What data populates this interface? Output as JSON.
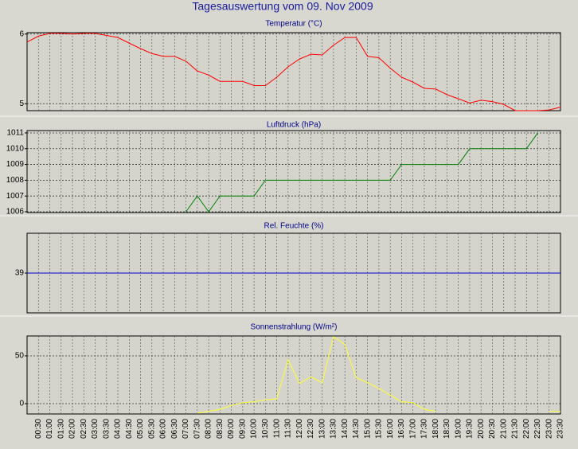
{
  "title": "Tagesauswertung vom 09. Nov 2009",
  "chart_data": [
    {
      "type": "line",
      "title": "Temperatur (°C)",
      "color": "#ff0000",
      "ylim": [
        4.9,
        6.02
      ],
      "yticks": [
        5,
        6
      ],
      "grid": true,
      "values": [
        5.885,
        5.97,
        6.01,
        6.01,
        6.0,
        6.01,
        6.01,
        5.98,
        5.95,
        5.87,
        5.79,
        5.72,
        5.68,
        5.68,
        5.61,
        5.47,
        5.41,
        5.32,
        5.32,
        5.32,
        5.26,
        5.26,
        5.38,
        5.53,
        5.64,
        5.71,
        5.7,
        5.84,
        5.95,
        5.95,
        5.68,
        5.66,
        5.51,
        5.38,
        5.31,
        5.22,
        5.21,
        5.13,
        5.07,
        5.01,
        5.05,
        5.03,
        4.99,
        4.9,
        4.9,
        4.9,
        4.91,
        4.95
      ]
    },
    {
      "type": "line",
      "title": "Luftdruck (hPa)",
      "color": "#008000",
      "ylim": [
        1005.95,
        1011.15
      ],
      "yticks": [
        1006,
        1007,
        1008,
        1009,
        1010,
        1011
      ],
      "grid": true,
      "values": [
        null,
        null,
        null,
        null,
        null,
        null,
        null,
        null,
        null,
        null,
        null,
        null,
        null,
        null,
        1006,
        1007,
        1006,
        1007,
        1007,
        1007,
        1007,
        1008,
        1008,
        1008,
        1008,
        1008,
        1008,
        1008,
        1008,
        1008,
        1008,
        1008,
        1008,
        1009,
        1009,
        1009,
        1009,
        1009,
        1009,
        1010,
        1010,
        1010,
        1010,
        1010,
        1010,
        1011,
        null,
        null
      ]
    },
    {
      "type": "line",
      "title": "Rel. Feuchte (%)",
      "color": "#0000cc",
      "ylim": [
        38,
        40
      ],
      "yticks": [
        39
      ],
      "grid": true,
      "values": [
        39,
        39,
        39,
        39,
        39,
        39,
        39,
        39,
        39,
        39,
        39,
        39,
        39,
        39,
        39,
        39,
        39,
        39,
        39,
        39,
        39,
        39,
        39,
        39,
        39,
        39,
        39,
        39,
        39,
        39,
        39,
        39,
        39,
        39,
        39,
        39,
        39,
        39,
        39,
        39,
        39,
        39,
        39,
        39,
        39,
        39,
        39,
        39
      ]
    },
    {
      "type": "line",
      "title": "Sonnenstrahlung (W/m²)",
      "color": "#ffff33",
      "ylim": [
        -10.8,
        70.8
      ],
      "yticks": [
        0,
        50
      ],
      "grid": true,
      "values": [
        null,
        null,
        null,
        null,
        null,
        null,
        null,
        null,
        null,
        null,
        null,
        null,
        null,
        null,
        null,
        -10,
        -8,
        -6,
        -2,
        1,
        2,
        4,
        5,
        46,
        21,
        28,
        22,
        70,
        62,
        27,
        22,
        16,
        9,
        2,
        1,
        -6,
        -8,
        null,
        null,
        null,
        null,
        null,
        null,
        null,
        null,
        null,
        -8,
        -8
      ],
      "categories": [
        null,
        "00:30",
        "01:00",
        "01:30",
        "02:00",
        "02:30",
        "03:00",
        "03:30",
        "04:00",
        "04:30",
        "05:00",
        "05:30",
        "06:00",
        "06:30",
        "07:00",
        "07:30",
        "08:00",
        "08:30",
        "09:00",
        "09:30",
        "10:00",
        "10:30",
        "11:00",
        "11:30",
        "12:00",
        "12:30",
        "13:00",
        "13:30",
        "14:00",
        "14:30",
        "15:00",
        "15:30",
        "16:00",
        "16:30",
        "17:00",
        "17:30",
        "18:00",
        "18:30",
        "19:00",
        "19:30",
        "20:00",
        "20:30",
        "21:00",
        "21:30",
        "22:00",
        "22:30",
        "23:00",
        "23:30"
      ]
    }
  ]
}
